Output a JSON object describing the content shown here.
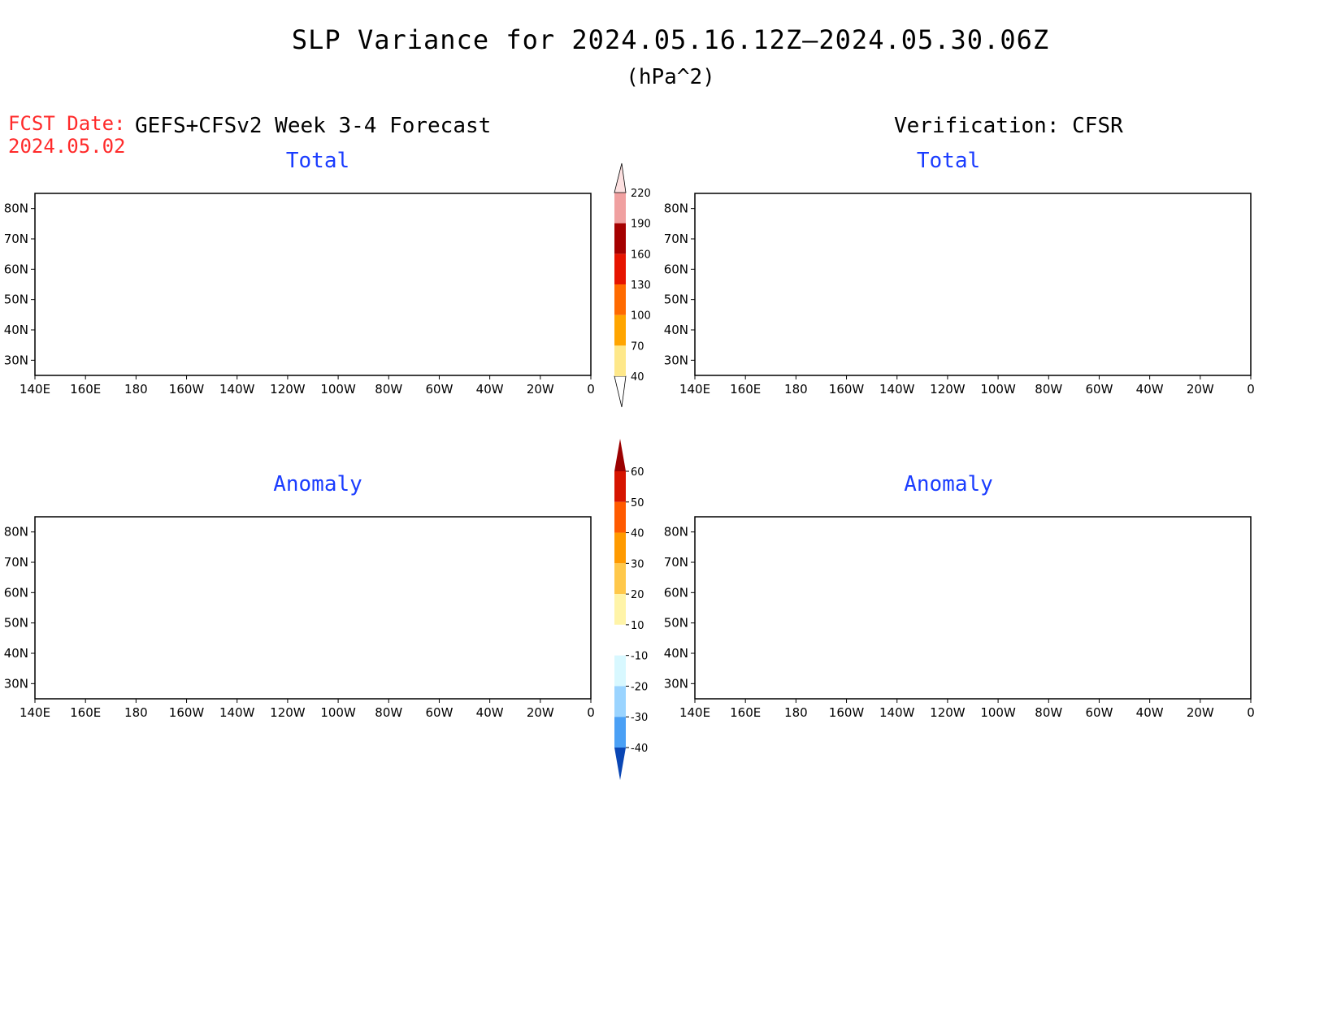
{
  "title": "SLP Variance for 2024.05.16.12Z—2024.05.30.06Z",
  "units": "(hPa^2)",
  "forecast_date_label": "FCST Date:",
  "forecast_date_value": "2024.05.02",
  "left_header": "GEFS+CFSv2 Week 3-4 Forecast",
  "right_header": "Verification: CFSR",
  "panels": [
    {
      "title": "Total"
    },
    {
      "title": "Total"
    },
    {
      "title": "Anomaly"
    },
    {
      "title": "Anomaly"
    }
  ],
  "map": {
    "lon_ticks": [
      "140E",
      "160E",
      "180",
      "160W",
      "140W",
      "120W",
      "100W",
      "80W",
      "60W",
      "40W",
      "20W",
      "0"
    ],
    "lat_ticks": [
      "80N",
      "70N",
      "60N",
      "50N",
      "40N",
      "30N"
    ],
    "lon_range": [
      140,
      360
    ],
    "lat_range": [
      25,
      85
    ]
  },
  "colorbar_total": {
    "levels": [
      "40",
      "70",
      "100",
      "130",
      "160",
      "190",
      "220"
    ],
    "colors": [
      "#fee88a",
      "#ffa500",
      "#ff6a00",
      "#e61400",
      "#a50000",
      "#f0a0a0",
      "#fde0e0"
    ]
  },
  "colorbar_anomaly": {
    "levels": [
      "60",
      "50",
      "40",
      "30",
      "20",
      "10",
      "-10",
      "-20",
      "-30",
      "-40"
    ],
    "colors": [
      "#9b0000",
      "#d61400",
      "#ff5a00",
      "#ff9a00",
      "#ffc84a",
      "#fff4a8",
      "#ffffff",
      "#d8f8ff",
      "#9ad4ff",
      "#4aa0f5",
      "#1e6ee0",
      "#0a46b4"
    ]
  }
}
